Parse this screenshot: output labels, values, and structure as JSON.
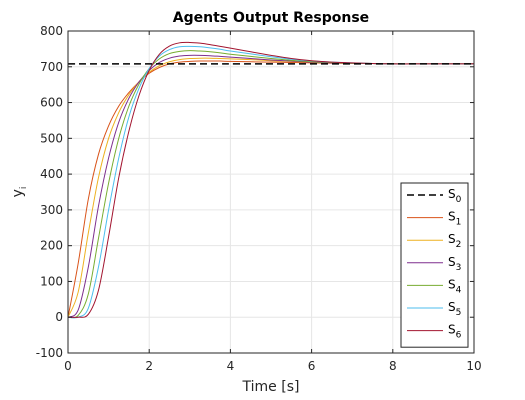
{
  "chart_data": {
    "type": "line",
    "title": "Agents Output Response",
    "xlabel": "Time [s]",
    "ylabel": "y",
    "ylabel_subscript": "i",
    "xlim": [
      0,
      10
    ],
    "ylim": [
      -100,
      800
    ],
    "xticks": [
      0,
      2,
      4,
      6,
      8,
      10
    ],
    "yticks": [
      -100,
      0,
      100,
      200,
      300,
      400,
      500,
      600,
      700,
      800
    ],
    "xtick_labels": [
      "0",
      "2",
      "4",
      "6",
      "8",
      "10"
    ],
    "ytick_labels": [
      "-100",
      "0",
      "100",
      "200",
      "300",
      "400",
      "500",
      "600",
      "700",
      "800"
    ],
    "grid": true,
    "legend_position": "bottom-right",
    "x": [
      0,
      0.25,
      0.5,
      0.75,
      1,
      1.25,
      1.5,
      1.75,
      2,
      2.25,
      2.5,
      2.75,
      3,
      3.25,
      3.5,
      3.75,
      4,
      4.5,
      5,
      5.5,
      6,
      6.5,
      7,
      7.5,
      8,
      8.5,
      9,
      9.5,
      10
    ],
    "series": [
      {
        "name": "S",
        "subscript": "0",
        "color": "#000000",
        "dashed": true,
        "values": [
          708,
          708,
          708,
          708,
          708,
          708,
          708,
          708,
          708,
          708,
          708,
          708,
          708,
          708,
          708,
          708,
          708,
          708,
          708,
          708,
          708,
          708,
          708,
          708,
          708,
          708,
          708,
          708,
          708
        ]
      },
      {
        "name": "S",
        "subscript": "1",
        "color": "#d95319",
        "dashed": false,
        "values": [
          0,
          150,
          330,
          455,
          535,
          590,
          628,
          658,
          682,
          698,
          708,
          713,
          715,
          716,
          716,
          716,
          715,
          714,
          713,
          712,
          711,
          710,
          709,
          709,
          708,
          708,
          708,
          708,
          708
        ]
      },
      {
        "name": "S",
        "subscript": "2",
        "color": "#edb120",
        "dashed": false,
        "values": [
          0,
          70,
          235,
          390,
          500,
          572,
          622,
          658,
          685,
          703,
          714,
          720,
          723,
          724,
          724,
          723,
          722,
          720,
          717,
          715,
          713,
          711,
          710,
          709,
          708,
          708,
          708,
          708,
          708
        ]
      },
      {
        "name": "S",
        "subscript": "3",
        "color": "#7e2f8e",
        "dashed": false,
        "values": [
          0,
          20,
          140,
          310,
          445,
          545,
          612,
          658,
          690,
          712,
          724,
          730,
          732,
          732,
          731,
          729,
          727,
          723,
          719,
          716,
          713,
          711,
          710,
          709,
          708,
          708,
          708,
          708,
          708
        ]
      },
      {
        "name": "S",
        "subscript": "4",
        "color": "#77ac30",
        "dashed": false,
        "values": [
          0,
          5,
          65,
          220,
          375,
          500,
          590,
          652,
          695,
          722,
          737,
          743,
          745,
          744,
          742,
          739,
          735,
          729,
          723,
          718,
          714,
          712,
          710,
          709,
          708,
          708,
          708,
          708,
          708
        ]
      },
      {
        "name": "S",
        "subscript": "5",
        "color": "#4dbeee",
        "dashed": false,
        "values": [
          0,
          0,
          25,
          140,
          300,
          445,
          560,
          640,
          695,
          730,
          748,
          756,
          757,
          756,
          753,
          749,
          744,
          736,
          728,
          721,
          716,
          713,
          711,
          709,
          708,
          708,
          708,
          708,
          708
        ]
      },
      {
        "name": "S",
        "subscript": "6",
        "color": "#a2142f",
        "dashed": false,
        "values": [
          0,
          0,
          8,
          75,
          225,
          390,
          520,
          620,
          690,
          735,
          758,
          767,
          768,
          766,
          762,
          757,
          752,
          742,
          732,
          723,
          717,
          713,
          711,
          709,
          708,
          708,
          708,
          708,
          708
        ]
      }
    ]
  }
}
